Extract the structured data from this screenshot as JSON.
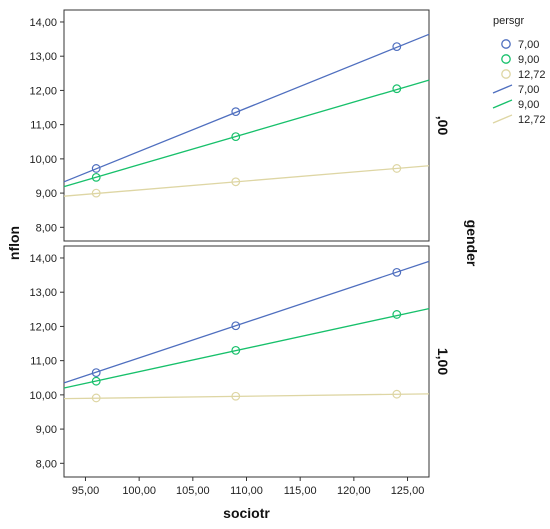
{
  "chart_data": {
    "type": "scatter",
    "xlabel": "sociotr",
    "ylabel": "nflon",
    "facet_title": "gender",
    "xlim": [
      93,
      127
    ],
    "ylim": [
      7.6,
      14.35
    ],
    "x_ticks": [
      "95,00",
      "100,00",
      "105,00",
      "110,00",
      "115,00",
      "120,00",
      "125,00"
    ],
    "x_tick_values": [
      95,
      100,
      105,
      110,
      115,
      120,
      125
    ],
    "y_ticks": [
      "8,00",
      "9,00",
      "10,00",
      "11,00",
      "12,00",
      "13,00",
      "14,00"
    ],
    "y_tick_values": [
      8,
      9,
      10,
      11,
      12,
      13,
      14
    ],
    "grid": false,
    "legend_title": "persgr",
    "legend_position": "right",
    "colors": {
      "7,00": "#4f6fbf",
      "9,00": "#17c06b",
      "12,72": "#ded6a4"
    },
    "panels": [
      {
        "label": ",00",
        "series": [
          {
            "name": "7,00",
            "points": [
              [
                96,
                9.72
              ],
              [
                109,
                11.38
              ],
              [
                124,
                13.28
              ]
            ],
            "line": [
              [
                93,
                9.33
              ],
              [
                127,
                13.64
              ]
            ]
          },
          {
            "name": "9,00",
            "points": [
              [
                96,
                9.46
              ],
              [
                109,
                10.65
              ],
              [
                124,
                12.05
              ]
            ],
            "line": [
              [
                93,
                9.19
              ],
              [
                127,
                12.3
              ]
            ]
          },
          {
            "name": "12,72",
            "points": [
              [
                96,
                9.0
              ],
              [
                109,
                9.33
              ],
              [
                124,
                9.72
              ]
            ],
            "line": [
              [
                93,
                8.91
              ],
              [
                127,
                9.8
              ]
            ]
          }
        ]
      },
      {
        "label": "1,00",
        "series": [
          {
            "name": "7,00",
            "points": [
              [
                96,
                10.65
              ],
              [
                109,
                12.02
              ],
              [
                124,
                13.58
              ]
            ],
            "line": [
              [
                93,
                10.35
              ],
              [
                127,
                13.9
              ]
            ]
          },
          {
            "name": "9,00",
            "points": [
              [
                96,
                10.4
              ],
              [
                109,
                11.3
              ],
              [
                124,
                12.35
              ]
            ],
            "line": [
              [
                93,
                10.2
              ],
              [
                127,
                12.52
              ]
            ]
          },
          {
            "name": "12,72",
            "points": [
              [
                96,
                9.91
              ],
              [
                109,
                9.96
              ],
              [
                124,
                10.02
              ]
            ],
            "line": [
              [
                93,
                9.89
              ],
              [
                127,
                10.03
              ]
            ]
          }
        ]
      }
    ]
  }
}
